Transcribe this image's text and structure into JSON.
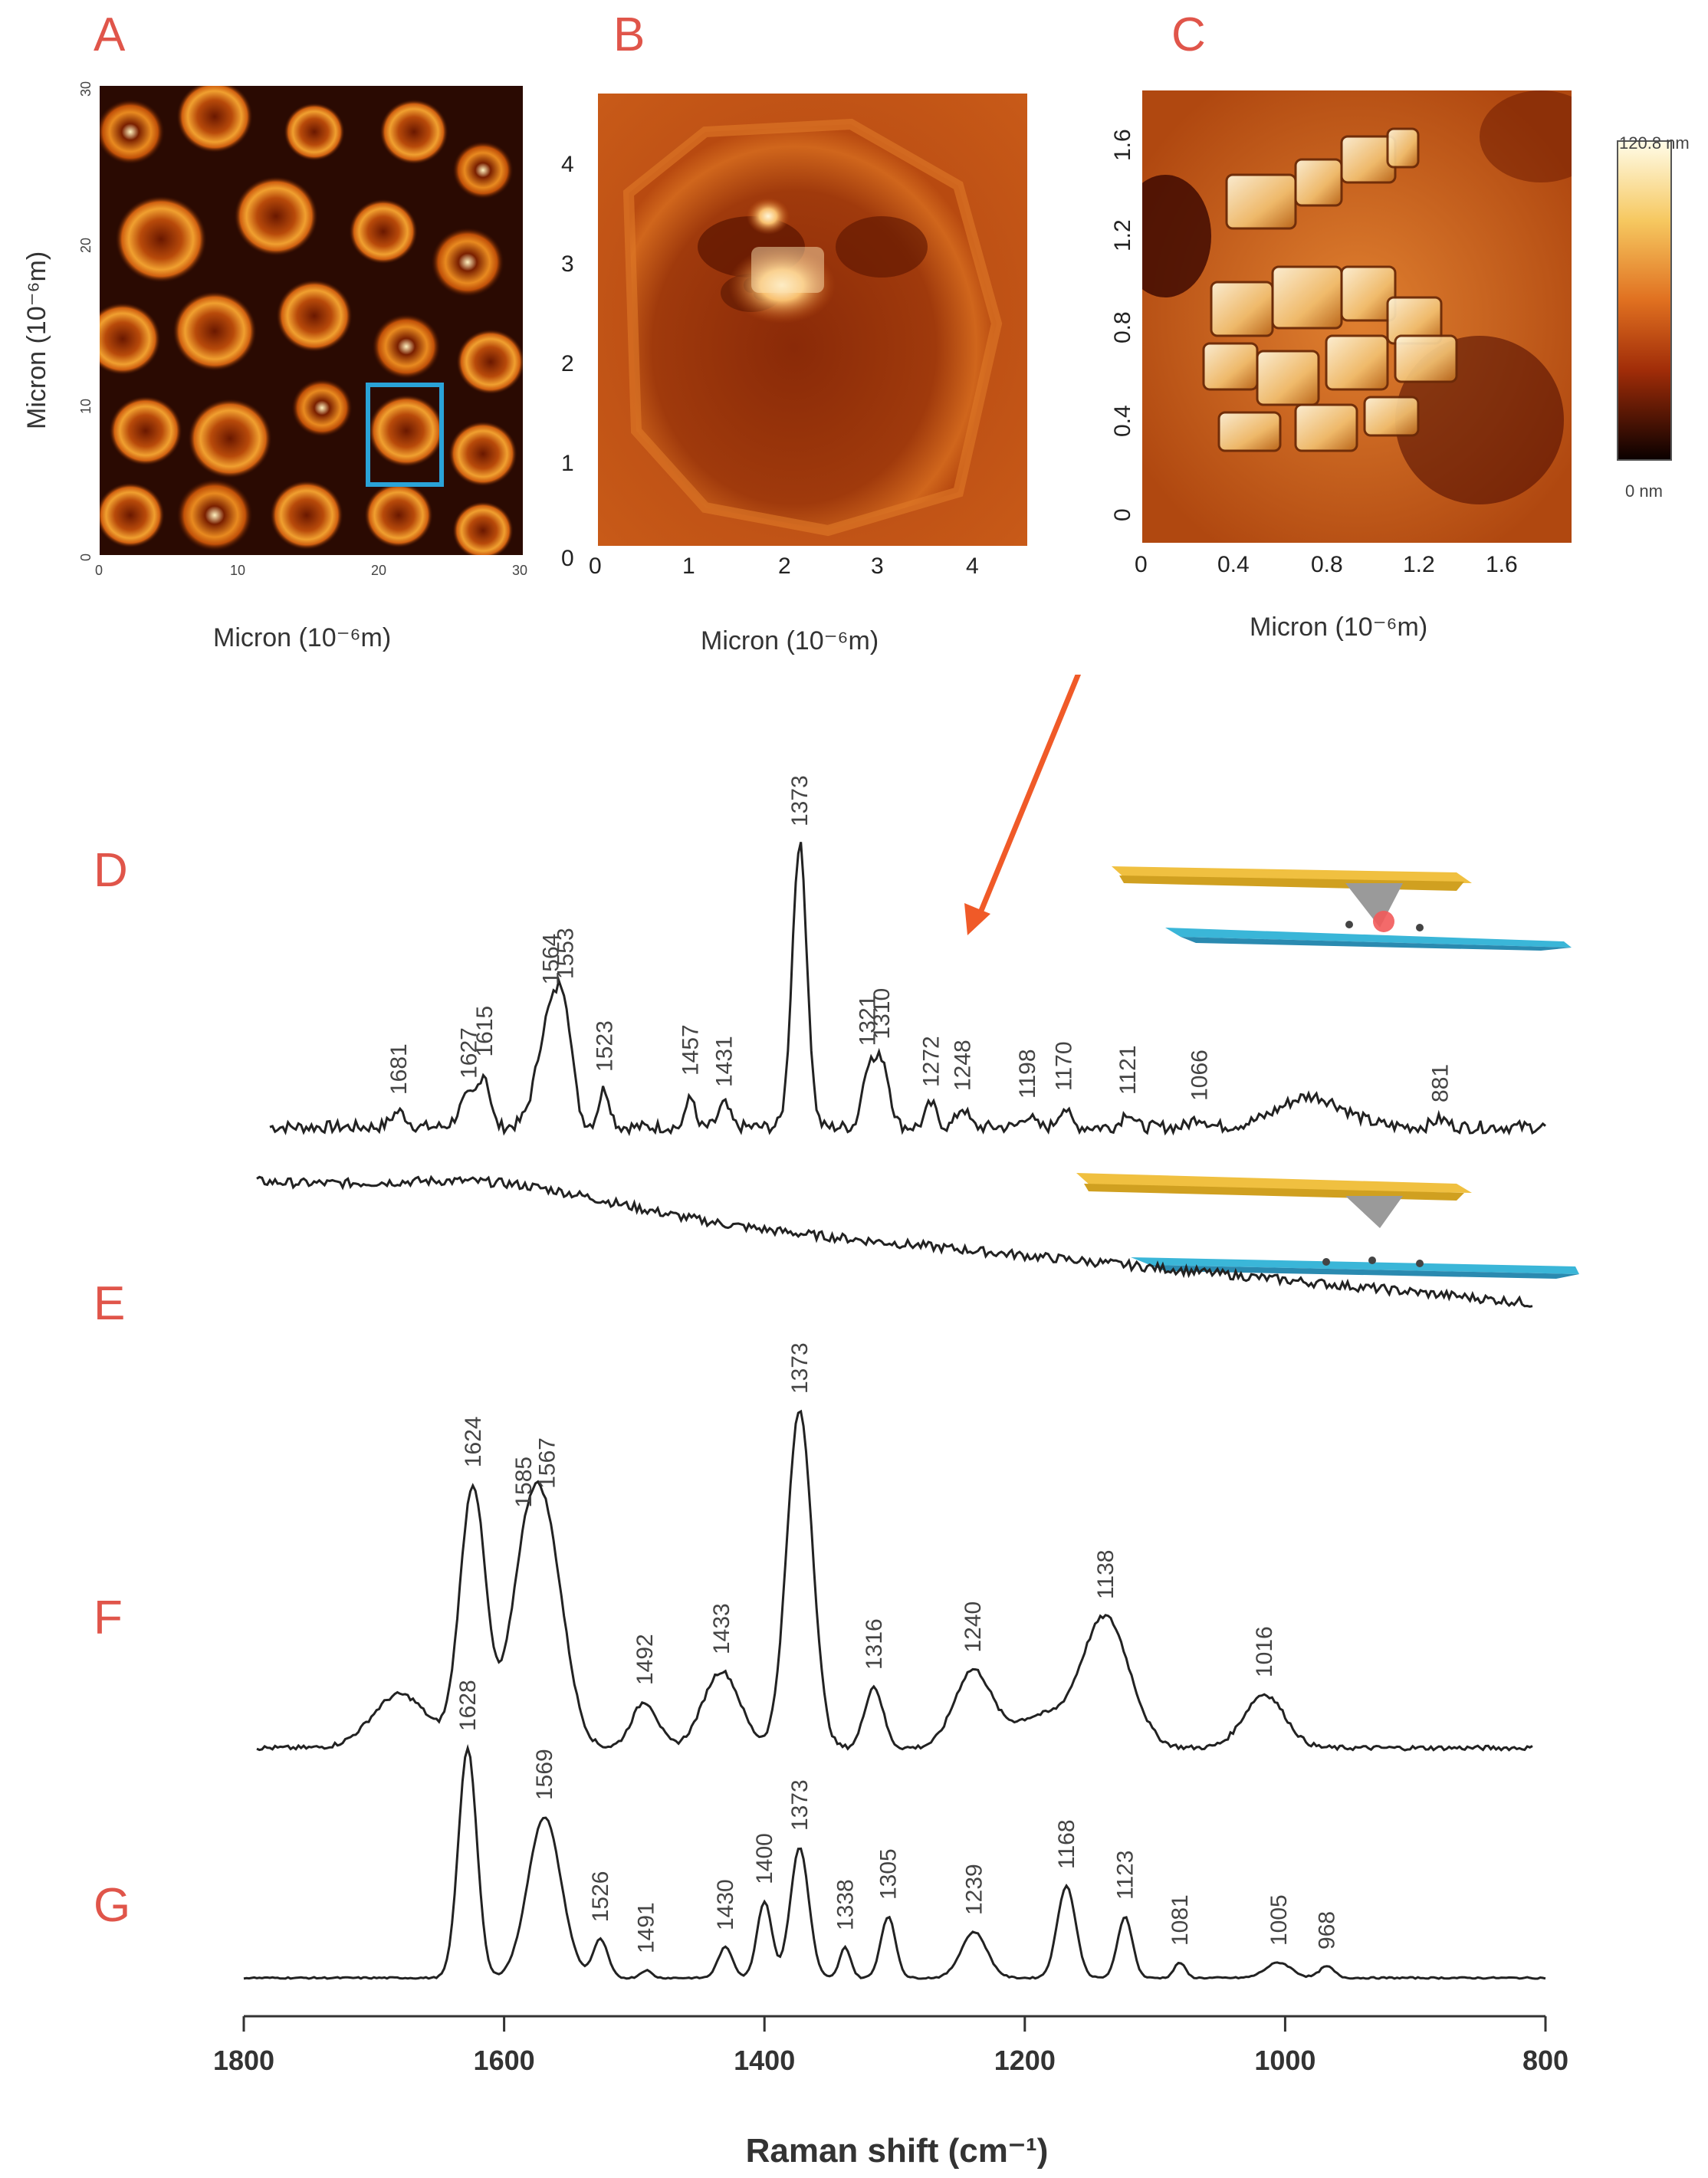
{
  "panels": {
    "A": {
      "letter": "A",
      "x_title": "Micron (10⁻⁶m)",
      "y_title": "Micron (10⁻⁶m)",
      "x_ticks": [
        "0",
        "10",
        "20",
        "30"
      ],
      "y_ticks": [
        "0",
        "10",
        "20",
        "30"
      ]
    },
    "B": {
      "letter": "B",
      "x_title": "Micron (10⁻⁶m)",
      "x_ticks": [
        "0",
        "1",
        "2",
        "3",
        "4"
      ],
      "y_ticks": [
        "0",
        "1",
        "2",
        "3",
        "4"
      ]
    },
    "C": {
      "letter": "C",
      "x_title": "Micron (10⁻⁶m)",
      "x_ticks": [
        "0",
        "0.4",
        "0.8",
        "1.2",
        "1.6"
      ],
      "y_ticks": [
        "0",
        "0.4",
        "0.8",
        "1.2",
        "1.6"
      ],
      "colorbar_max": "120.8 nm",
      "colorbar_min": "0 nm"
    },
    "D": {
      "letter": "D"
    },
    "E": {
      "letter": "E"
    },
    "F": {
      "letter": "F"
    },
    "G": {
      "letter": "G"
    }
  },
  "colors": {
    "letters": "#e0554a",
    "arrow": "#f05a28",
    "box": "#2aa3d8",
    "cantilever": "#f0c040",
    "substrate": "#3ab6d8",
    "trace": "#222222"
  },
  "chart_data": {
    "type": "line",
    "xlabel": "Raman shift (cm⁻¹)",
    "x_ticks": [
      "1800",
      "1600",
      "1400",
      "1200",
      "1000",
      "800"
    ],
    "xlim": [
      1800,
      800
    ],
    "series": [
      {
        "label": "D",
        "peak_labels": [
          "1681",
          "1627",
          "1615",
          "1564",
          "1553",
          "1523",
          "1457",
          "1431",
          "1373",
          "1321",
          "1310",
          "1272",
          "1248",
          "1198",
          "1170",
          "1121",
          "1066",
          "881"
        ]
      },
      {
        "label": "E",
        "peak_labels": []
      },
      {
        "label": "F",
        "peak_labels": [
          "1624",
          "1585",
          "1567",
          "1492",
          "1433",
          "1373",
          "1316",
          "1240",
          "1138",
          "1016"
        ]
      },
      {
        "label": "G",
        "peak_labels": [
          "1628",
          "1569",
          "1526",
          "1491",
          "1430",
          "1400",
          "1373",
          "1338",
          "1305",
          "1239",
          "1168",
          "1123",
          "1081",
          "1005",
          "968"
        ]
      }
    ]
  }
}
